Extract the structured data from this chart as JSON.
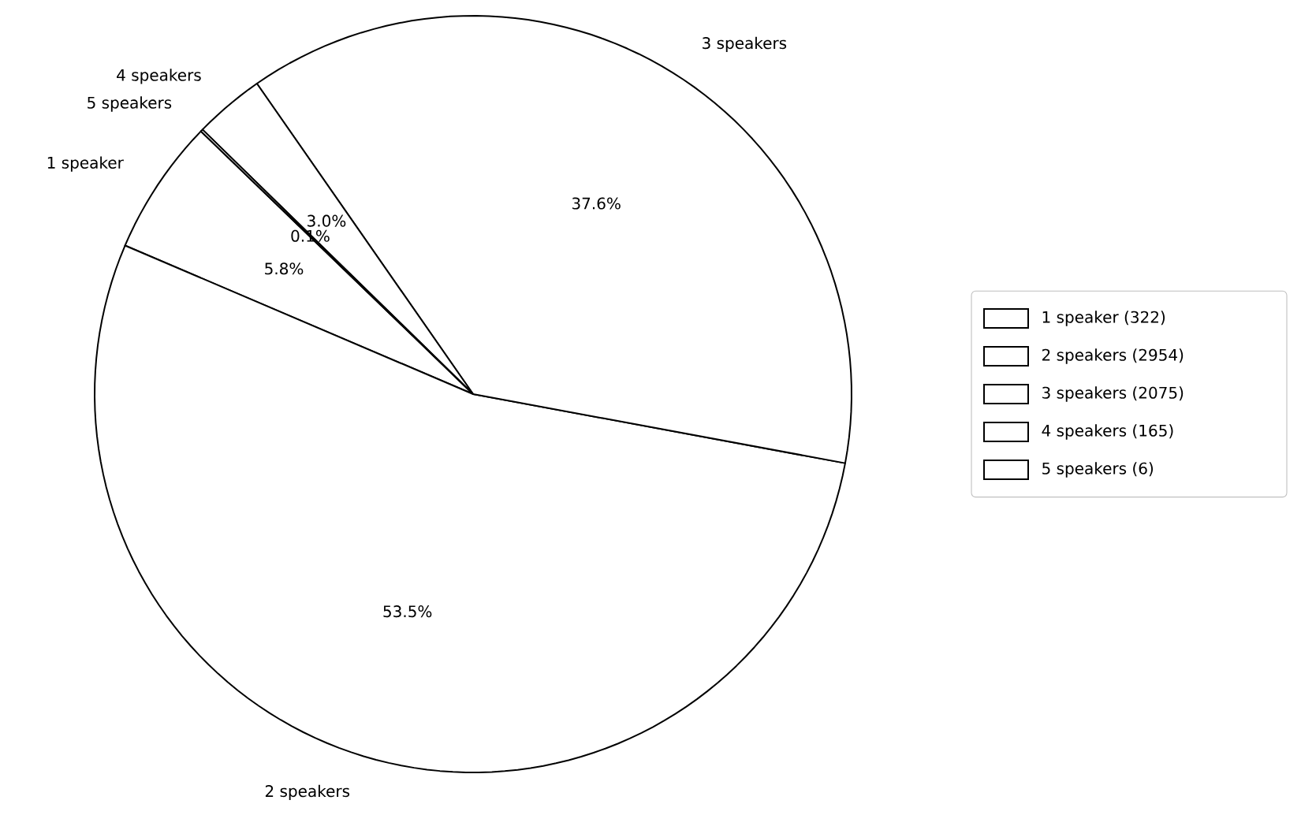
{
  "chart_data": {
    "type": "pie",
    "categories": [
      "1 speaker",
      "2 speakers",
      "3 speakers",
      "4 speakers",
      "5 speakers"
    ],
    "values": [
      5.8,
      53.5,
      37.6,
      3.0,
      0.1
    ],
    "value_labels": [
      "5.8%",
      "53.5%",
      "37.6%",
      "3.0%",
      "0.1%"
    ],
    "colors": [
      "#ffffff",
      "#ffffff",
      "#ffffff",
      "#ffffff",
      "#ffffff"
    ],
    "annotations": [
      "1 speaker (322)",
      "2 speakers (2954)",
      "3 speakers (2075)",
      "4 speakers (165)",
      "5 speakers (6)"
    ]
  }
}
